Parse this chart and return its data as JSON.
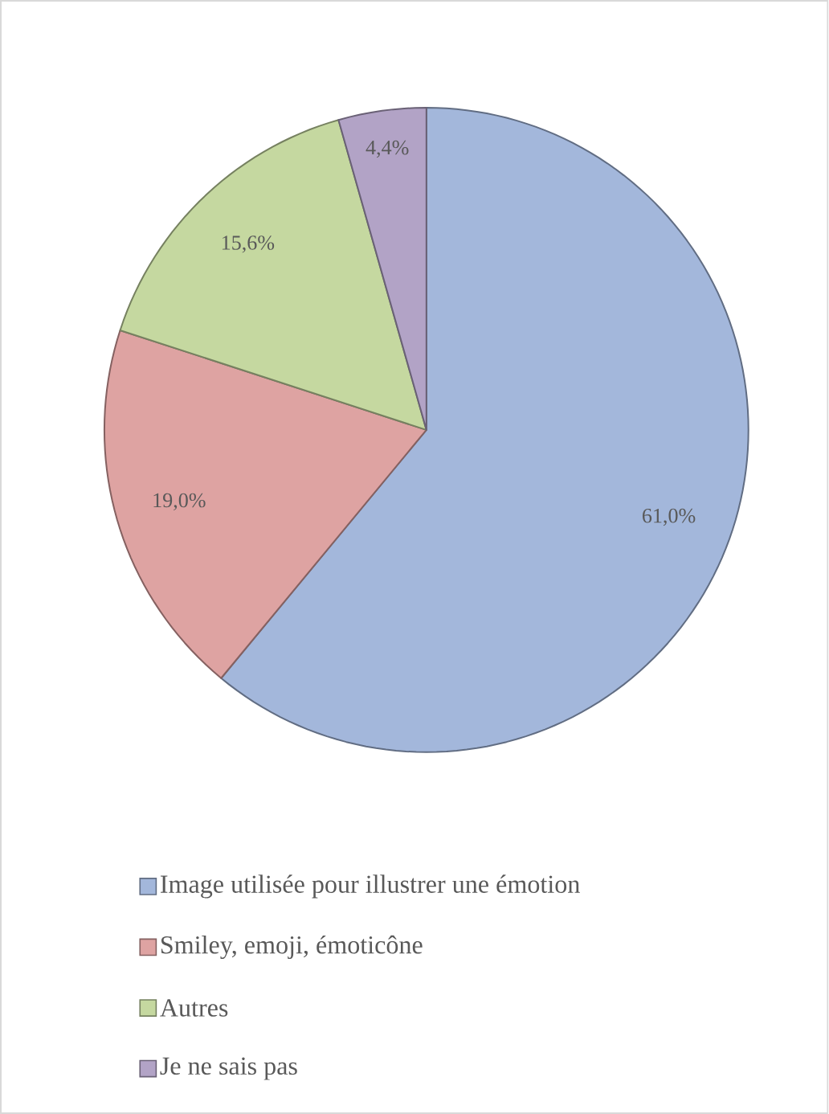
{
  "chart_data": {
    "type": "pie",
    "categories": [
      "Image utilisée pour illustrer une émotion",
      "Smiley, emoji, émoticône",
      "Autres",
      "Je ne sais pas"
    ],
    "values": [
      61.0,
      19.0,
      15.6,
      4.4
    ],
    "value_labels": [
      "61,0%",
      "19,0%",
      "15,6%",
      "4,4%"
    ],
    "colors": [
      "#a3b7db",
      "#dea3a2",
      "#c5d8a0",
      "#b2a3c6"
    ],
    "legend": "bottom"
  }
}
